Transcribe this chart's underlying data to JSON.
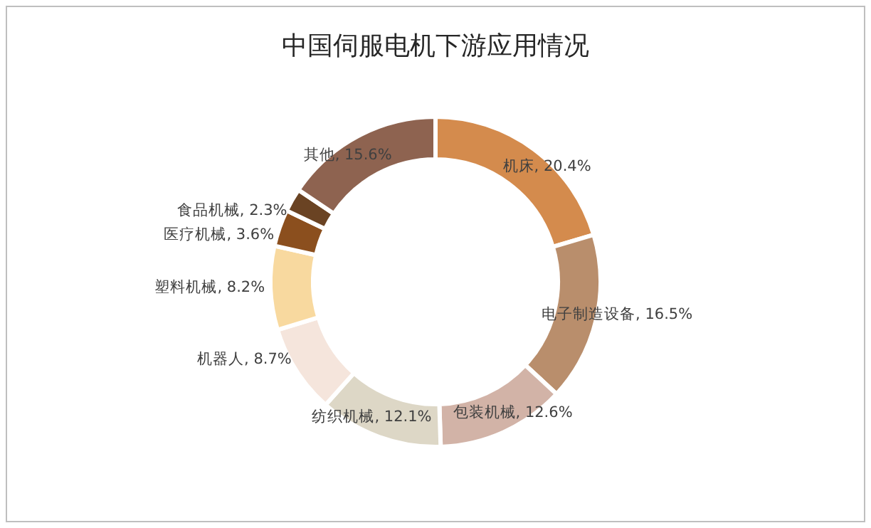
{
  "chart_data": {
    "type": "donut",
    "title": "中国伺服电机下游应用情况",
    "categories": [
      "机床",
      "电子制造设备",
      "包装机械",
      "纺织机械",
      "机器人",
      "塑料机械",
      "医疗机械",
      "食品机械",
      "其他"
    ],
    "values": [
      20.4,
      16.5,
      12.6,
      12.1,
      8.7,
      8.2,
      3.6,
      2.3,
      15.6
    ],
    "value_labels": [
      "20.4%",
      "16.5%",
      "12.6%",
      "12.1%",
      "8.7%",
      "8.2%",
      "3.6%",
      "2.3%",
      "15.6%"
    ],
    "colors": [
      "#d48b4d",
      "#b98e6c",
      "#d2b3a7",
      "#ddd7c6",
      "#f5e5dc",
      "#f8d99f",
      "#8b4f1e",
      "#6a4323",
      "#8e6350"
    ],
    "legend": false
  }
}
